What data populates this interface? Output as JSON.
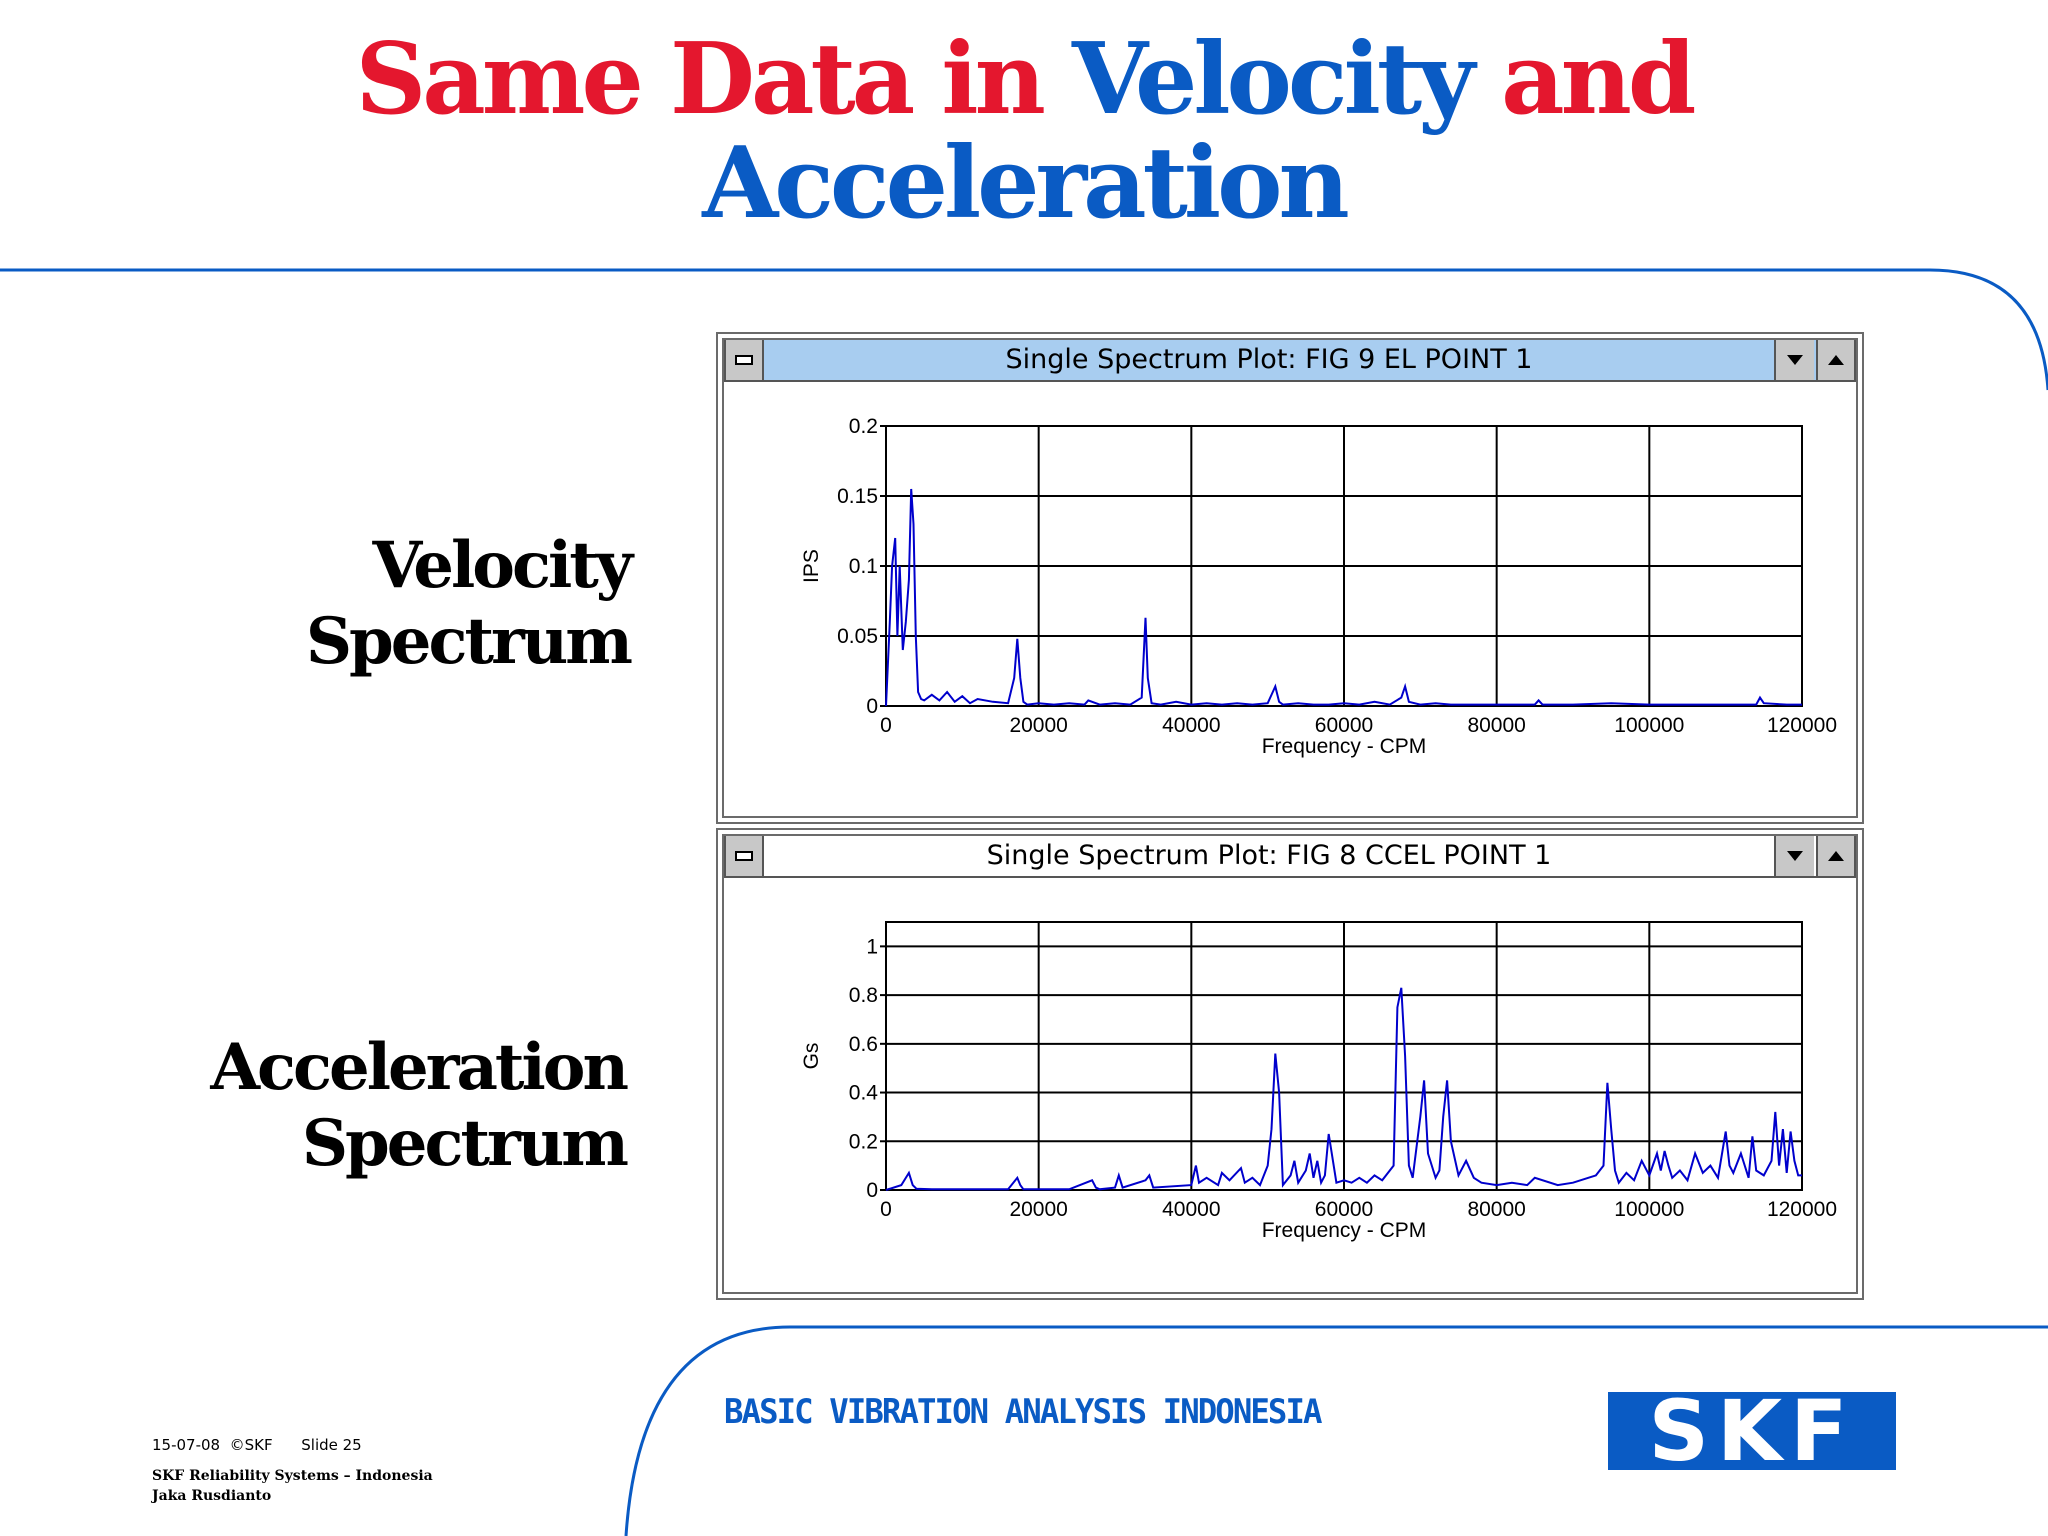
{
  "slide": {
    "title_red_1": "Same Data in ",
    "title_blue": "Velocity",
    "title_red_2": " and",
    "title_line2": "Acceleration",
    "velocity_label": [
      "Velocity",
      "Spectrum"
    ],
    "acceleration_label": [
      "Acceleration",
      "Spectrum"
    ]
  },
  "windows": [
    {
      "title": "Single Spectrum Plot: FIG 9 EL   POINT 1",
      "state": "active",
      "minimize_icon": "minimize-icon",
      "scroll_down_icon": "chevron-down-icon",
      "scroll_up_icon": "chevron-up-icon"
    },
    {
      "title": "Single Spectrum Plot: FIG 8 CCEL  POINT 1",
      "state": "inactive",
      "minimize_icon": "minimize-icon",
      "scroll_down_icon": "chevron-down-icon",
      "scroll_up_icon": "chevron-up-icon"
    }
  ],
  "chart_data": [
    {
      "type": "line",
      "xlabel": "Frequency - CPM",
      "ylabel": "IPS",
      "xlim": [
        0,
        120000
      ],
      "ylim": [
        0,
        0.2
      ],
      "xticks": [
        0,
        20000,
        40000,
        60000,
        80000,
        100000,
        120000
      ],
      "yticks": [
        0,
        0.05,
        0.1,
        0.15,
        0.2
      ],
      "ytick_labels": [
        "0",
        "0.05",
        "0.1",
        "0.15",
        "0.2"
      ],
      "grid": true,
      "line_color": "#0000cc",
      "series": [
        {
          "x": [
            0,
            500,
            800,
            1200,
            1500,
            1800,
            2200,
            2600,
            3000,
            3300,
            3600,
            3900,
            4200,
            4600,
            5000,
            6000,
            7000,
            8000,
            9000,
            10000,
            11000,
            12000,
            14000,
            16000,
            16800,
            17200,
            17600,
            18000,
            18500,
            20000,
            22000,
            24000,
            26000,
            26500,
            28000,
            30000,
            32000,
            33500,
            34000,
            34300,
            34800,
            36000,
            38000,
            40000,
            42000,
            44000,
            46000,
            48000,
            50000,
            51000,
            51500,
            52000,
            54000,
            56000,
            58000,
            60000,
            62000,
            64000,
            66000,
            67500,
            68000,
            68500,
            70000,
            72000,
            74000,
            76000,
            78000,
            80000,
            85000,
            85500,
            86000,
            90000,
            95000,
            100000,
            105000,
            110000,
            114000,
            114500,
            115000,
            118000,
            120000
          ],
          "y": [
            0.0,
            0.06,
            0.1,
            0.12,
            0.05,
            0.1,
            0.04,
            0.06,
            0.09,
            0.155,
            0.13,
            0.05,
            0.01,
            0.005,
            0.004,
            0.008,
            0.004,
            0.01,
            0.003,
            0.007,
            0.002,
            0.005,
            0.003,
            0.002,
            0.02,
            0.048,
            0.02,
            0.003,
            0.001,
            0.002,
            0.001,
            0.002,
            0.001,
            0.004,
            0.001,
            0.002,
            0.001,
            0.006,
            0.063,
            0.02,
            0.002,
            0.001,
            0.003,
            0.001,
            0.002,
            0.001,
            0.002,
            0.001,
            0.002,
            0.014,
            0.003,
            0.001,
            0.002,
            0.001,
            0.001,
            0.002,
            0.001,
            0.003,
            0.001,
            0.006,
            0.014,
            0.003,
            0.001,
            0.002,
            0.001,
            0.001,
            0.001,
            0.001,
            0.001,
            0.004,
            0.001,
            0.001,
            0.002,
            0.001,
            0.001,
            0.001,
            0.001,
            0.006,
            0.002,
            0.001,
            0.001
          ]
        }
      ]
    },
    {
      "type": "line",
      "xlabel": "Frequency - CPM",
      "ylabel": "Gs",
      "xlim": [
        0,
        120000
      ],
      "ylim": [
        0,
        1.1
      ],
      "xticks": [
        0,
        20000,
        40000,
        60000,
        80000,
        100000,
        120000
      ],
      "yticks": [
        0,
        0.2,
        0.4,
        0.6,
        0.8,
        1
      ],
      "ytick_labels": [
        "0",
        "0.2",
        "0.4",
        "0.6",
        "0.8",
        "1"
      ],
      "grid": true,
      "line_color": "#0000cc",
      "series": [
        {
          "x": [
            0,
            2000,
            3000,
            3500,
            4000,
            6000,
            10000,
            16000,
            17200,
            17600,
            18000,
            24000,
            27000,
            27500,
            28000,
            30000,
            30500,
            31000,
            34000,
            34500,
            35000,
            40000,
            40600,
            41000,
            42000,
            43500,
            44000,
            45000,
            46500,
            47000,
            48000,
            49000,
            50000,
            50500,
            51000,
            51500,
            52000,
            53000,
            53500,
            54000,
            55000,
            55500,
            56000,
            56500,
            57000,
            57500,
            58000,
            59000,
            60000,
            61000,
            62000,
            63000,
            64000,
            65000,
            66000,
            66500,
            67000,
            67500,
            68000,
            68500,
            69000,
            70000,
            70500,
            71000,
            72000,
            72500,
            73000,
            73500,
            74000,
            75000,
            76000,
            77000,
            78000,
            80000,
            82000,
            84000,
            85000,
            88000,
            90000,
            92000,
            93000,
            94000,
            94500,
            95000,
            95500,
            96000,
            97000,
            98000,
            99000,
            100000,
            101000,
            101500,
            102000,
            102500,
            103000,
            104000,
            105000,
            106000,
            107000,
            108000,
            109000,
            110000,
            110500,
            111000,
            112000,
            113000,
            113500,
            114000,
            115000,
            116000,
            116500,
            117000,
            117500,
            118000,
            118500,
            119000,
            119500,
            120000
          ],
          "y": [
            0.0,
            0.02,
            0.07,
            0.02,
            0.005,
            0.003,
            0.003,
            0.003,
            0.05,
            0.02,
            0.003,
            0.003,
            0.04,
            0.01,
            0.003,
            0.01,
            0.06,
            0.01,
            0.04,
            0.06,
            0.01,
            0.02,
            0.1,
            0.03,
            0.05,
            0.02,
            0.07,
            0.04,
            0.09,
            0.03,
            0.05,
            0.02,
            0.1,
            0.25,
            0.56,
            0.4,
            0.02,
            0.06,
            0.12,
            0.03,
            0.08,
            0.15,
            0.05,
            0.12,
            0.03,
            0.06,
            0.23,
            0.03,
            0.04,
            0.03,
            0.05,
            0.03,
            0.06,
            0.04,
            0.08,
            0.1,
            0.75,
            0.83,
            0.55,
            0.1,
            0.05,
            0.3,
            0.45,
            0.15,
            0.05,
            0.08,
            0.3,
            0.45,
            0.2,
            0.06,
            0.12,
            0.05,
            0.03,
            0.02,
            0.03,
            0.02,
            0.05,
            0.02,
            0.03,
            0.05,
            0.06,
            0.1,
            0.44,
            0.25,
            0.08,
            0.03,
            0.07,
            0.04,
            0.12,
            0.06,
            0.15,
            0.08,
            0.16,
            0.1,
            0.05,
            0.08,
            0.04,
            0.15,
            0.07,
            0.1,
            0.05,
            0.24,
            0.1,
            0.07,
            0.15,
            0.05,
            0.22,
            0.08,
            0.06,
            0.12,
            0.32,
            0.1,
            0.25,
            0.07,
            0.24,
            0.12,
            0.06,
            0.06
          ]
        }
      ]
    }
  ],
  "footer": {
    "date": "15-07-08",
    "copyright": "©SKF",
    "slide_number": "Slide 25",
    "org_line1": "SKF Reliability Systems – Indonesia",
    "org_line2": "Jaka Rusdianto",
    "banner": "BASIC VIBRATION ANALYSIS INDONESIA",
    "logo": "SKF"
  },
  "colors": {
    "title_red": "#e4172e",
    "title_blue": "#0a5bc4",
    "accent_line": "#0a5bc4",
    "active_titlebar": "#a8cdf0"
  }
}
